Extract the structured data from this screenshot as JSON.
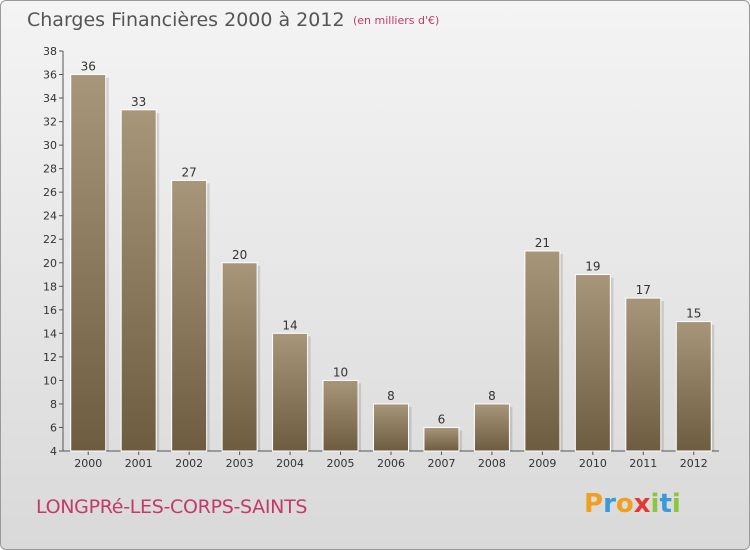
{
  "title": "Charges Financières 2000 à 2012",
  "unit_note": "(en milliers d'€)",
  "commune": "LONGPRé-LES-CORPS-SAINTS",
  "brand": {
    "letters": [
      "P",
      "r",
      "o",
      "x",
      "i",
      "t",
      "i"
    ],
    "colors": [
      "#f0a020",
      "#3a9ad9",
      "#f0a020",
      "#e5392f",
      "#8cc63f",
      "#3a9ad9",
      "#8cc63f"
    ]
  },
  "colors": {
    "bar_top": "#a8967a",
    "bar_bottom": "#6e5c40",
    "unit_text": "#c33a6a"
  },
  "chart_data": {
    "type": "bar",
    "categories": [
      "2000",
      "2001",
      "2002",
      "2003",
      "2004",
      "2005",
      "2006",
      "2007",
      "2008",
      "2009",
      "2010",
      "2011",
      "2012"
    ],
    "values": [
      36,
      33,
      27,
      20,
      14,
      10,
      8,
      6,
      8,
      21,
      19,
      17,
      15
    ],
    "title": "Charges Financières 2000 à 2012",
    "ylim": [
      4,
      38
    ],
    "yticks": [
      4,
      6,
      8,
      10,
      12,
      14,
      16,
      18,
      20,
      22,
      24,
      26,
      28,
      30,
      32,
      34,
      36,
      38
    ],
    "grid": false,
    "legend": "none"
  }
}
